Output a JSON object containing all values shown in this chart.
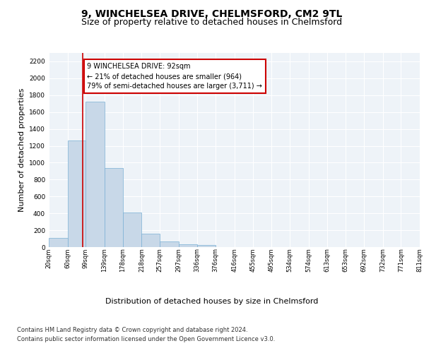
{
  "title": "9, WINCHELSEA DRIVE, CHELMSFORD, CM2 9TL",
  "subtitle": "Size of property relative to detached houses in Chelmsford",
  "xlabel": "Distribution of detached houses by size in Chelmsford",
  "ylabel": "Number of detached properties",
  "bar_values": [
    110,
    1265,
    1720,
    940,
    410,
    155,
    65,
    35,
    25,
    0,
    0,
    0,
    0,
    0,
    0,
    0,
    0,
    0,
    0,
    0
  ],
  "bin_edges": [
    20,
    60,
    99,
    139,
    178,
    218,
    257,
    297,
    336,
    376,
    416,
    455,
    495,
    534,
    574,
    613,
    653,
    692,
    732,
    771,
    811
  ],
  "tick_labels": [
    "20sqm",
    "60sqm",
    "99sqm",
    "139sqm",
    "178sqm",
    "218sqm",
    "257sqm",
    "297sqm",
    "336sqm",
    "376sqm",
    "416sqm",
    "455sqm",
    "495sqm",
    "534sqm",
    "574sqm",
    "613sqm",
    "653sqm",
    "692sqm",
    "732sqm",
    "771sqm",
    "811sqm"
  ],
  "bar_color": "#c8d8e8",
  "bar_edge_color": "#7ab0d4",
  "red_line_x": 92,
  "ylim": [
    0,
    2300
  ],
  "yticks": [
    0,
    200,
    400,
    600,
    800,
    1000,
    1200,
    1400,
    1600,
    1800,
    2000,
    2200
  ],
  "annotation_text": "9 WINCHELSEA DRIVE: 92sqm\n← 21% of detached houses are smaller (964)\n79% of semi-detached houses are larger (3,711) →",
  "annotation_box_color": "#ffffff",
  "annotation_border_color": "#cc0000",
  "footer_line1": "Contains HM Land Registry data © Crown copyright and database right 2024.",
  "footer_line2": "Contains public sector information licensed under the Open Government Licence v3.0.",
  "background_color": "#eef3f8",
  "grid_color": "#ffffff",
  "title_fontsize": 10,
  "subtitle_fontsize": 9,
  "ylabel_fontsize": 8,
  "xlabel_fontsize": 8,
  "tick_fontsize": 6,
  "annotation_fontsize": 7,
  "footer_fontsize": 6
}
